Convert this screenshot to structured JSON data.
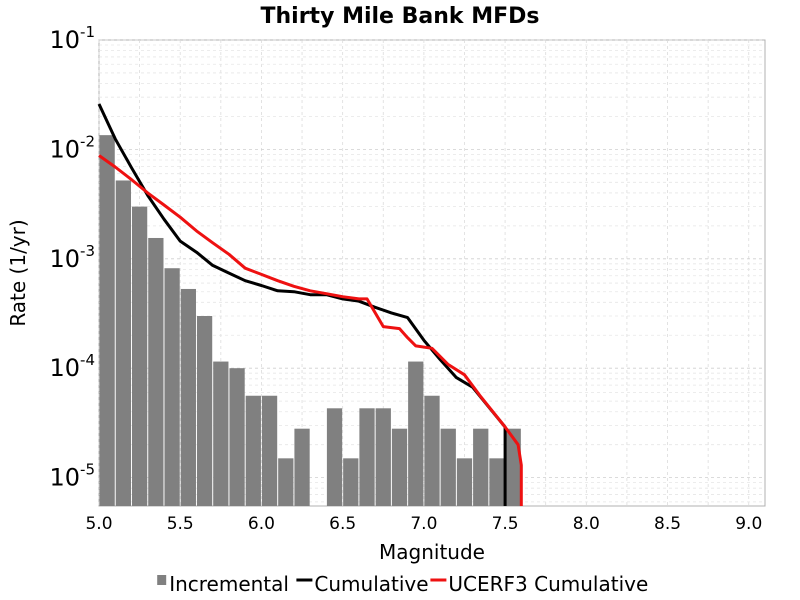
{
  "chart_data": {
    "type": "bar",
    "title": "Thirty Mile Bank MFDs",
    "xlabel": "Magnitude",
    "ylabel": "Rate (1/yr)",
    "xlim": [
      5.0,
      9.1
    ],
    "ylim": [
      5.5e-06,
      0.1
    ],
    "y_scale": "log",
    "grid": true,
    "legend_position": "bottom",
    "x_ticks": [
      "5.0",
      "5.5",
      "6.0",
      "6.5",
      "7.0",
      "7.5",
      "8.0",
      "8.5",
      "9.0"
    ],
    "y_ticks": [
      {
        "value": 0.1,
        "base": "10",
        "exp": "-1"
      },
      {
        "value": 0.01,
        "base": "10",
        "exp": "-2"
      },
      {
        "value": 0.001,
        "base": "10",
        "exp": "-3"
      },
      {
        "value": 0.0001,
        "base": "10",
        "exp": "-4"
      },
      {
        "value": 1e-05,
        "base": "10",
        "exp": "-5"
      }
    ],
    "series": [
      {
        "name": "Incremental",
        "kind": "bar",
        "color": "#808080",
        "x": [
          5.05,
          5.15,
          5.25,
          5.35,
          5.45,
          5.55,
          5.65,
          5.75,
          5.85,
          5.95,
          6.05,
          6.15,
          6.25,
          6.35,
          6.45,
          6.55,
          6.65,
          6.75,
          6.85,
          6.95,
          7.05,
          7.15,
          7.25,
          7.35,
          7.45,
          7.55
        ],
        "y": [
          0.0135,
          0.0052,
          0.003,
          0.00155,
          0.00082,
          0.00053,
          0.0003,
          0.000115,
          0.0001,
          5.6e-05,
          5.6e-05,
          1.5e-05,
          2.8e-05,
          0.0,
          4.3e-05,
          1.5e-05,
          4.3e-05,
          4.3e-05,
          2.8e-05,
          0.000115,
          5.6e-05,
          2.8e-05,
          1.5e-05,
          2.8e-05,
          1.5e-05,
          2.8e-05
        ]
      },
      {
        "name": "Cumulative",
        "kind": "line",
        "color": "#000000",
        "x": [
          5.0,
          5.1,
          5.2,
          5.3,
          5.4,
          5.5,
          5.6,
          5.7,
          5.8,
          5.9,
          6.0,
          6.1,
          6.2,
          6.3,
          6.4,
          6.5,
          6.6,
          6.7,
          6.8,
          6.9,
          7.0,
          7.1,
          7.2,
          7.3,
          7.4,
          7.5,
          7.5
        ],
        "y": [
          0.026,
          0.0125,
          0.0068,
          0.0038,
          0.0023,
          0.00145,
          0.00115,
          0.00087,
          0.00074,
          0.00063,
          0.00057,
          0.00051,
          0.0005,
          0.00047,
          0.00047,
          0.00043,
          0.00041,
          0.00036,
          0.00032,
          0.00029,
          0.00018,
          0.00012,
          8.2e-05,
          6.7e-05,
          4.4e-05,
          2.9e-05,
          3e-06
        ]
      },
      {
        "name": "UCERF3 Cumulative",
        "kind": "line",
        "color": "#ee1111",
        "x": [
          5.0,
          5.1,
          5.2,
          5.3,
          5.4,
          5.5,
          5.6,
          5.7,
          5.8,
          5.9,
          6.0,
          6.1,
          6.2,
          6.3,
          6.4,
          6.5,
          6.6,
          6.65,
          6.75,
          6.85,
          6.9,
          6.95,
          7.05,
          7.15,
          7.25,
          7.35,
          7.5,
          7.58,
          7.6,
          7.6
        ],
        "y": [
          0.0088,
          0.0069,
          0.0053,
          0.004,
          0.0031,
          0.0024,
          0.0018,
          0.0014,
          0.0011,
          0.00082,
          0.00072,
          0.00063,
          0.00056,
          0.00051,
          0.00048,
          0.00045,
          0.00043,
          0.00043,
          0.00024,
          0.00023,
          0.00019,
          0.00016,
          0.000152,
          0.000108,
          8.7e-05,
          5.5e-05,
          2.9e-05,
          2e-05,
          1.3e-05,
          3e-06
        ]
      }
    ]
  }
}
